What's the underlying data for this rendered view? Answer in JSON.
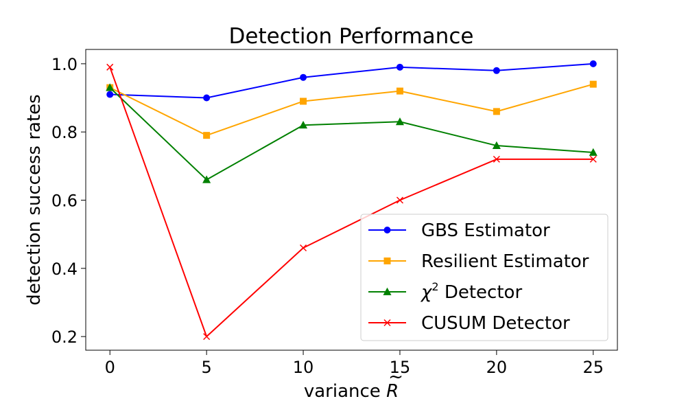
{
  "chart_data": {
    "type": "line",
    "title": "Detection Performance",
    "xlabel_main": "variance ",
    "xlabel_symbol": "R",
    "xlabel_accent": "~",
    "ylabel": "detection success rates",
    "xlim": [
      -1.25,
      26.25
    ],
    "ylim": [
      0.16,
      1.042
    ],
    "x_ticks": [
      0,
      5,
      10,
      15,
      20,
      25
    ],
    "x_tick_labels": [
      "0",
      "5",
      "10",
      "15",
      "20",
      "25"
    ],
    "y_ticks": [
      0.2,
      0.4,
      0.6,
      0.8,
      1.0
    ],
    "y_tick_labels": [
      "0.2",
      "0.4",
      "0.6",
      "0.8",
      "1.0"
    ],
    "x": [
      0,
      5,
      10,
      15,
      20,
      25
    ],
    "legend_position": "lower-right",
    "series": [
      {
        "name": "GBS Estimator",
        "color": "#0000ff",
        "marker": "circle",
        "values": [
          0.91,
          0.9,
          0.96,
          0.99,
          0.98,
          1.0
        ]
      },
      {
        "name": "Resilient Estimator",
        "color": "#ffa500",
        "marker": "square",
        "values": [
          0.93,
          0.79,
          0.89,
          0.92,
          0.86,
          0.94
        ]
      },
      {
        "name": "χ² Detector",
        "name_symbol": "χ",
        "name_sup": "2",
        "name_rest": " Detector",
        "color": "#008000",
        "marker": "triangle",
        "values": [
          0.93,
          0.66,
          0.82,
          0.83,
          0.76,
          0.74
        ]
      },
      {
        "name": "CUSUM Detector",
        "color": "#ff0000",
        "marker": "x",
        "values": [
          0.99,
          0.2,
          0.46,
          0.6,
          0.72,
          0.72
        ]
      }
    ]
  }
}
